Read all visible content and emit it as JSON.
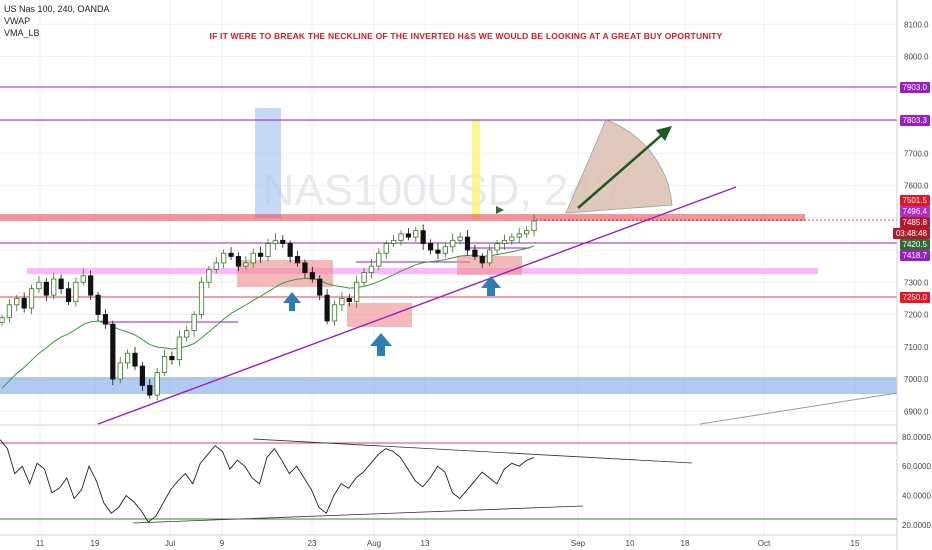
{
  "header": {
    "symbol_line": "US Nas 100, 240, OANDA",
    "indicator_1": "VWAP",
    "indicator_2": "VMA_LB",
    "annotation": "IF IT WERE TO BREAK THE NECKLINE OF THE INVERTED H&S WE WOULD BE LOOKING AT A GREAT BUY OPORTUNITY",
    "watermark": "NAS100USD, 240"
  },
  "colors": {
    "candle_up": "#2f7a1c",
    "candle_down": "#111111",
    "vwap": "#3a9a3a",
    "trendline": "#9a1ec8",
    "support_red": "#e04050",
    "resistance_band": "#e8404a",
    "pink_band": "#ff66ff",
    "blue_zone": "#6f9fe8",
    "zone_box": "#f08a8a",
    "arrow_blue": "#2e7eb5",
    "annotation_red": "#e8141e"
  },
  "price_labels": {
    "l7903": "7903.0",
    "l7803": "7803.3",
    "l7501": "7501.5",
    "l7496": "7496.4",
    "l7485": "7485.8",
    "l_timer": "03:48:48",
    "l7420": "7420.5",
    "l7418": "7418.7",
    "l7250": "7250.0"
  },
  "chart_data": [
    {
      "type": "candlestick",
      "title": "US Nas 100, 240, OANDA",
      "ylim": [
        6850,
        8150
      ],
      "y_ticks": [
        "6900.0",
        "7000.0",
        "7100.0",
        "7200.0",
        "7300.0",
        "7400.0",
        "7500.0",
        "7600.0",
        "7700.0",
        "7800.0",
        "7900.0",
        "8000.0",
        "8100.0"
      ],
      "x_ticks": [
        "11",
        "19",
        "Jul",
        "9",
        "23",
        "Aug",
        "13",
        "Sep",
        "10",
        "18",
        "Oct",
        "15"
      ],
      "horizontal_levels": [
        7903.0,
        7803.3,
        7501.5,
        7250.0,
        7420.5
      ],
      "last_price": 7485.8,
      "close_path": [
        7190,
        7230,
        7250,
        7220,
        7280,
        7300,
        7260,
        7310,
        7280,
        7240,
        7300,
        7320,
        7260,
        7200,
        7170,
        7000,
        7050,
        7080,
        7040,
        6980,
        6950,
        7020,
        7070,
        7060,
        7130,
        7150,
        7200,
        7300,
        7340,
        7360,
        7390,
        7380,
        7350,
        7360,
        7390,
        7380,
        7420,
        7430,
        7420,
        7380,
        7360,
        7330,
        7310,
        7260,
        7180,
        7230,
        7250,
        7240,
        7300,
        7330,
        7350,
        7390,
        7420,
        7430,
        7450,
        7440,
        7460,
        7420,
        7400,
        7390,
        7410,
        7430,
        7440,
        7400,
        7380,
        7360,
        7400,
        7420,
        7430,
        7440,
        7450,
        7460,
        7490
      ]
    },
    {
      "type": "line",
      "title": "RSI",
      "ylim": [
        15,
        85
      ],
      "y_ticks": [
        "80.0000",
        "60.0000",
        "40.0000",
        "20.0000"
      ],
      "levels": [
        75,
        25
      ],
      "values": [
        78,
        72,
        55,
        60,
        48,
        62,
        58,
        42,
        45,
        52,
        38,
        44,
        60,
        50,
        35,
        28,
        32,
        40,
        36,
        30,
        22,
        26,
        35,
        44,
        50,
        55,
        48,
        62,
        68,
        74,
        70,
        58,
        64,
        60,
        52,
        48,
        66,
        72,
        64,
        55,
        60,
        52,
        44,
        32,
        28,
        40,
        48,
        45,
        52,
        56,
        62,
        68,
        72,
        70,
        66,
        58,
        50,
        46,
        52,
        60,
        56,
        42,
        38,
        44,
        50,
        56,
        52,
        48,
        58,
        62,
        60,
        64,
        66
      ]
    }
  ]
}
